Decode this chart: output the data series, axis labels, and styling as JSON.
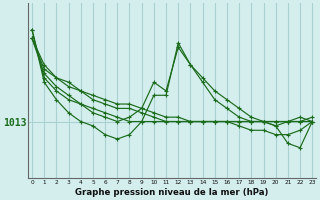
{
  "title": "Graphe pression niveau de la mer (hPa)",
  "ylabel_value": 1013,
  "background_color": "#d4eeee",
  "grid_color": "#aad0d0",
  "line_color": "#1a6b1a",
  "x_ticks": [
    0,
    1,
    2,
    3,
    4,
    5,
    6,
    7,
    8,
    9,
    10,
    11,
    12,
    13,
    14,
    15,
    16,
    17,
    18,
    19,
    20,
    21,
    22,
    23
  ],
  "series": [
    [
      1022.5,
      1019.5,
      1018.0,
      1017.5,
      1016.5,
      1016.0,
      1015.5,
      1015.0,
      1015.0,
      1014.5,
      1014.0,
      1013.5,
      1013.5,
      1013.0,
      1013.0,
      1013.0,
      1013.0,
      1013.0,
      1013.0,
      1013.0,
      1013.0,
      1013.0,
      1013.0,
      1013.0
    ],
    [
      1022.5,
      1019.0,
      1018.0,
      1017.0,
      1016.5,
      1015.5,
      1015.0,
      1014.5,
      1014.5,
      1014.0,
      1013.5,
      1013.0,
      1013.0,
      1013.0,
      1013.0,
      1013.0,
      1013.0,
      1013.0,
      1013.0,
      1013.0,
      1013.0,
      1013.0,
      1013.0,
      1013.5
    ],
    [
      1022.5,
      1018.5,
      1017.0,
      1016.0,
      1015.0,
      1014.5,
      1014.0,
      1013.5,
      1013.0,
      1013.0,
      1013.0,
      1013.0,
      1013.0,
      1013.0,
      1013.0,
      1013.0,
      1013.0,
      1012.5,
      1012.0,
      1012.0,
      1011.5,
      1011.5,
      1012.0,
      1013.0
    ],
    [
      1023.5,
      1018.0,
      1016.5,
      1015.5,
      1015.0,
      1014.0,
      1013.5,
      1013.0,
      1013.5,
      1014.5,
      1017.5,
      1016.5,
      1021.5,
      1019.5,
      1018.0,
      1016.5,
      1015.5,
      1014.5,
      1013.5,
      1013.0,
      1012.5,
      1013.0,
      1013.5,
      1013.0
    ],
    [
      1023.5,
      1017.5,
      1015.5,
      1014.0,
      1013.0,
      1012.5,
      1011.5,
      1011.0,
      1011.5,
      1013.0,
      1016.0,
      1016.0,
      1022.0,
      1019.5,
      1017.5,
      1015.5,
      1014.5,
      1013.5,
      1013.0,
      1013.0,
      1012.5,
      1010.5,
      1010.0,
      1013.0
    ]
  ],
  "hline_value": 1013,
  "xlim": [
    -0.3,
    23.3
  ],
  "ylim_bottom": 1006.5,
  "ylim_top": 1026.5
}
